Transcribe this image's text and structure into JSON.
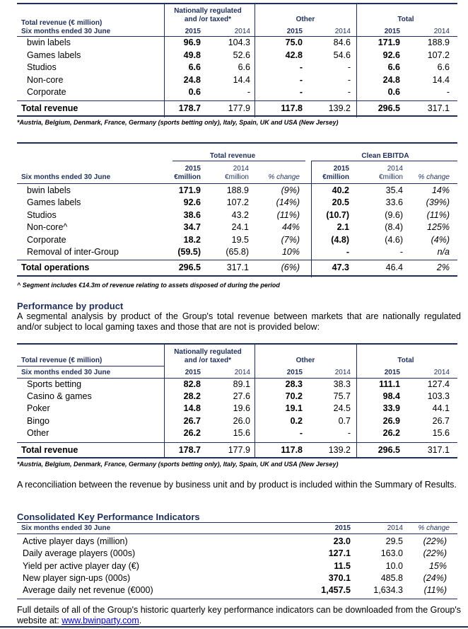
{
  "table1": {
    "corner_title": "Total revenue (€ million)",
    "corner_sub": "Six months ended 30 June",
    "group_nat": "Nationally regulated and /or taxed*",
    "group_other": "Other",
    "group_total": "Total",
    "year_a": "2015",
    "year_b": "2014",
    "rows": [
      {
        "label": "bwin labels",
        "v": [
          "96.9",
          "104.3",
          "75.0",
          "84.6",
          "171.9",
          "188.9"
        ]
      },
      {
        "label": "Games labels",
        "v": [
          "49.8",
          "52.6",
          "42.8",
          "54.6",
          "92.6",
          "107.2"
        ]
      },
      {
        "label": "Studios",
        "v": [
          "6.6",
          "6.6",
          "-",
          "-",
          "6.6",
          "6.6"
        ]
      },
      {
        "label": "Non-core",
        "v": [
          "24.8",
          "14.4",
          "-",
          "-",
          "24.8",
          "14.4"
        ]
      },
      {
        "label": "Corporate",
        "v": [
          "0.6",
          "-",
          "-",
          "-",
          "0.6",
          "-"
        ]
      }
    ],
    "total": {
      "label": "Total revenue",
      "v": [
        "178.7",
        "177.9",
        "117.8",
        "139.2",
        "296.5",
        "317.1"
      ]
    },
    "footnote": "*Austria, Belgium, Denmark, France, Germany (sports betting only), Italy, Spain, UK and USA (New Jersey)"
  },
  "table2": {
    "group_rev": "Total revenue",
    "group_ebitda": "Clean EBITDA",
    "corner_sub": "Six months ended 30 June",
    "h_2015": "2015",
    "h_2014": "2014",
    "h_emillion_b": "€million",
    "h_emillion": "€million",
    "h_change": "% change",
    "rows": [
      {
        "label": "bwin labels",
        "v": [
          "171.9",
          "188.9",
          "(9%)",
          "40.2",
          "35.4",
          "14%"
        ]
      },
      {
        "label": "Games labels",
        "v": [
          "92.6",
          "107.2",
          "(14%)",
          "20.5",
          "33.6",
          "(39%)"
        ]
      },
      {
        "label": "Studios",
        "v": [
          "38.6",
          "43.2",
          "(11%)",
          "(10.7)",
          "(9.6)",
          "(11%)"
        ]
      },
      {
        "label": "Non-core^",
        "v": [
          "34.7",
          "24.1",
          "44%",
          "2.1",
          "(8.4)",
          "125%"
        ]
      },
      {
        "label": "Corporate",
        "v": [
          "18.2",
          "19.5",
          "(7%)",
          "(4.8)",
          "(4.6)",
          "(4%)"
        ]
      },
      {
        "label": "Removal of inter-Group",
        "v": [
          "(59.5)",
          "(65.8)",
          "10%",
          "-",
          "-",
          "n/a"
        ]
      }
    ],
    "total": {
      "label": "Total operations",
      "v": [
        "296.5",
        "317.1",
        "(6%)",
        "47.3",
        "46.4",
        "2%"
      ]
    },
    "footnote": "^ Segment includes €14.3m of revenue relating to assets disposed of during the period"
  },
  "perf": {
    "heading": "Performance by product",
    "text": "A segmental analysis by product of the Group's total revenue between markets that are nationally regulated and/or subject to local gaming taxes and those that are not is provided below:"
  },
  "table3": {
    "corner_title": "Total revenue (€ million)",
    "corner_sub": "Six months ended 30 June",
    "group_nat": "Nationally regulated and /or taxed*",
    "group_other": "Other",
    "group_total": "Total",
    "year_a": "2015",
    "year_b": "2014",
    "rows": [
      {
        "label": "Sports betting",
        "v": [
          "82.8",
          "89.1",
          "28.3",
          "38.3",
          "111.1",
          "127.4"
        ]
      },
      {
        "label": "Casino & games",
        "v": [
          "28.2",
          "27.6",
          "70.2",
          "75.7",
          "98.4",
          "103.3"
        ]
      },
      {
        "label": "Poker",
        "v": [
          "14.8",
          "19.6",
          "19.1",
          "24.5",
          "33.9",
          "44.1"
        ]
      },
      {
        "label": "Bingo",
        "v": [
          "26.7",
          "26.0",
          "0.2",
          "0.7",
          "26.9",
          "26.7"
        ]
      },
      {
        "label": "Other",
        "v": [
          "26.2",
          "15.6",
          "-",
          "-",
          "26.2",
          "15.6"
        ]
      }
    ],
    "total": {
      "label": "Total revenue",
      "v": [
        "178.7",
        "177.9",
        "117.8",
        "139.2",
        "296.5",
        "317.1"
      ]
    },
    "footnote": "*Austria, Belgium, Denmark, France, Germany (sports betting only), Italy, Spain, UK and USA (New Jersey)"
  },
  "recon_text": "A reconciliation between the revenue by business unit and by product is included within the Summary of Results.",
  "kpi": {
    "heading": "Consolidated Key Performance Indicators",
    "corner_sub": "Six months ended 30 June",
    "h_2015": "2015",
    "h_2014": "2014",
    "h_change": "% change",
    "rows": [
      {
        "label": "Active player days (million)",
        "v": [
          "23.0",
          "29.5",
          "(22%)"
        ]
      },
      {
        "label": "Daily average players (000s)",
        "v": [
          "127.1",
          "163.0",
          "(22%)"
        ]
      },
      {
        "label": "Yield per active player day (€)",
        "v": [
          "11.5",
          "10.0",
          "15%"
        ]
      },
      {
        "label": "New player sign-ups (000s)",
        "v": [
          "370.1",
          "485.8",
          "(24%)"
        ]
      },
      {
        "label": "Average daily net revenue (€000)",
        "v": [
          "1,457.5",
          "1,634.3",
          "(11%)"
        ]
      }
    ]
  },
  "closing": {
    "text": "Full details of all of the Group's historic quarterly key performance indicators can be downloaded from the Group's website at:",
    "link": "www.bwinparty.com",
    "after": "."
  }
}
